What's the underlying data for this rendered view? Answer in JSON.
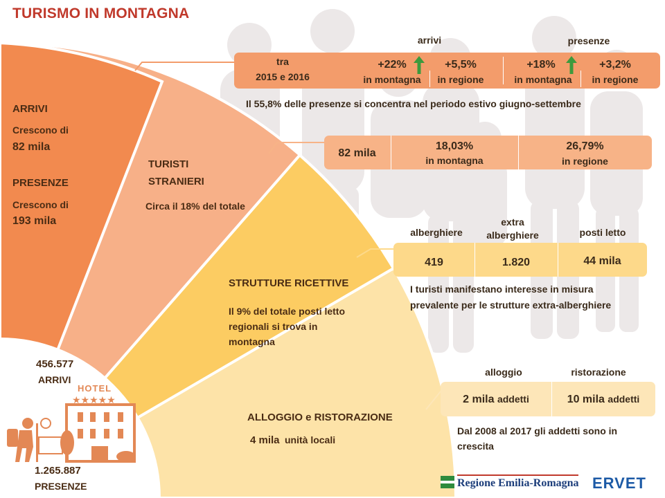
{
  "title": "TURISMO IN MONTAGNA",
  "colors": {
    "title": "#c0392b",
    "segment_arrivi": "#f28a4f",
    "segment_stranieri": "#f7b088",
    "segment_strutture": "#fccc62",
    "segment_alloggio": "#fde3a8",
    "bar_arrivi": "#f39c6b",
    "bar_stranieri": "#f7b387",
    "bar_strutture": "#fdd98a",
    "bar_alloggio": "#fde6b8",
    "silhouettes": "#ece8e8",
    "up_arrow": "#3d9a3d"
  },
  "segments": {
    "arrivi": {
      "arrivi_label": "ARRIVI",
      "arrivi_text_1": "Crescono di",
      "arrivi_text_2": "82 mila",
      "presenze_label": "PRESENZE",
      "presenze_text_1": "Crescono di",
      "presenze_text_2": "193 mila"
    },
    "stranieri": {
      "label_1": "TURISTI",
      "label_2": "STRANIERI",
      "text": "Circa il 18% del totale"
    },
    "strutture": {
      "label": "STRUTTURE  RICETTIVE",
      "text_1": "Il 9% del totale posti letto",
      "text_2": "regionali si trova in",
      "text_3": "montagna"
    },
    "alloggio": {
      "label": "ALLOGGIO e RISTORAZIONE",
      "value": "4 mila",
      "unit": "unità locali"
    }
  },
  "totals": {
    "arrivi_value": "456.577",
    "arrivi_label": "ARRIVI",
    "presenze_value": "1.265.887",
    "presenze_label": "PRESENZE",
    "hotel_sign": "HOTEL"
  },
  "row_arrivi": {
    "header_arrivi": "arrivi",
    "header_presenze": "presenze",
    "period_1": "tra",
    "period_2": "2015 e 2016",
    "arrivi_montagna_value": "+22%",
    "arrivi_montagna_label": "in montagna",
    "arrivi_regione_value": "+5,5%",
    "arrivi_regione_label": "in regione",
    "presenze_montagna_value": "+18%",
    "presenze_montagna_label": "in montagna",
    "presenze_regione_value": "+3,2%",
    "presenze_regione_label": "in regione",
    "note": "Il 55,8% delle presenze si concentra nel periodo estivo giugno-settembre"
  },
  "row_stranieri": {
    "value": "82 mila",
    "montagna_value": "18,03%",
    "montagna_label": "in montagna",
    "regione_value": "26,79%",
    "regione_label": "in regione"
  },
  "row_strutture": {
    "header_alberghiere": "alberghiere",
    "header_extra_1": "extra",
    "header_extra_2": "alberghiere",
    "header_posti": "posti letto",
    "alberghiere_value": "419",
    "extra_value": "1.820",
    "posti_value": "44 mila",
    "note_1": "I turisti manifestano interesse in misura",
    "note_2": "prevalente per le strutture extra-alberghiere"
  },
  "row_alloggio": {
    "header_alloggio": "alloggio",
    "header_ristorazione": "ristorazione",
    "alloggio_value": "2 mila",
    "alloggio_unit": "addetti",
    "ristorazione_value": "10 mila",
    "ristorazione_unit": "addetti",
    "note_1": "Dal 2008 al 2017 gli addetti sono in",
    "note_2": "crescita"
  },
  "logos": {
    "regione": "Regione Emilia-Romagna",
    "ervet": "ERVET"
  }
}
